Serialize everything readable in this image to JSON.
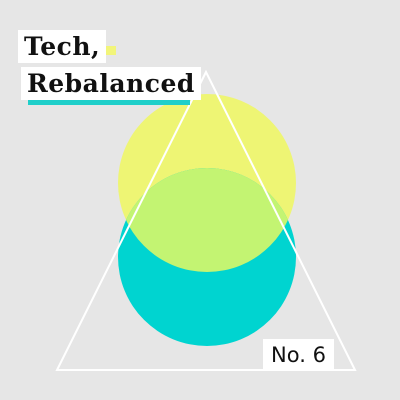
{
  "cover": {
    "title_line1": "Tech,",
    "title_line2": "Rebalanced",
    "issue_label": "No. 6"
  },
  "colors": {
    "background": "#e6e6e6",
    "circle_top": "#eef574",
    "circle_bottom": "#00d4d0",
    "circle_overlap": "#c3f472",
    "triangle_stroke": "#ffffff",
    "title_highlight_line1": "#f2f57a",
    "title_highlight_line2": "#1fcfca",
    "label_background": "#ffffff",
    "text": "#111111"
  },
  "icons": [
    "venn-circles",
    "triangle-outline"
  ]
}
